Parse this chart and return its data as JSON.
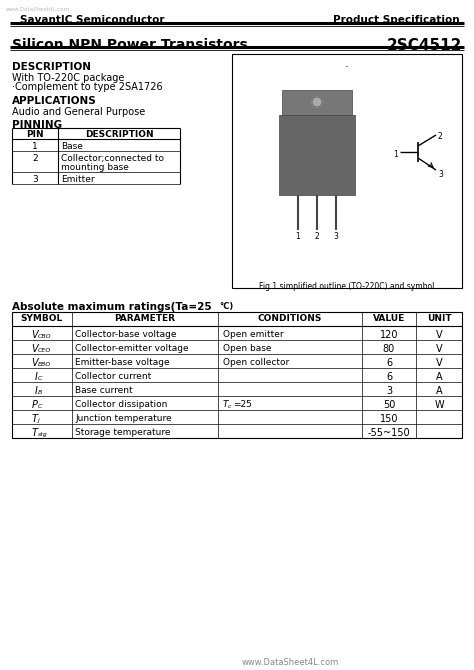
{
  "bg_color": "#ffffff",
  "header_left": "SavantIC Semiconductor",
  "header_right": "Product Specification",
  "watermark_text": "www.DataSheet4L.com",
  "watermark_color": "#bbbbbb",
  "title_left": "Silicon NPN Power Transistors",
  "title_right": "2SC4512",
  "description_title": "DESCRIPTION",
  "description_lines": [
    "With TO-220C package",
    "·Complement to type 2SA1726"
  ],
  "applications_title": "APPLICATIONS",
  "applications_lines": [
    "Audio and General Purpose"
  ],
  "pinning_title": "PINNING",
  "pinning_headers": [
    "PIN",
    "DESCRIPTION"
  ],
  "pinning_rows": [
    [
      "1",
      "Base"
    ],
    [
      "2",
      "Collector;connected to\nmounting base"
    ],
    [
      "3",
      "Emitter"
    ]
  ],
  "fig_caption": "Fig.1 simplified outline (TO-220C) and symbol",
  "table_title": "Absolute maximum ratings(Ta=25",
  "table_title_super": "°C)",
  "table_headers": [
    "SYMBOL",
    "PARAMETER",
    "CONDITIONS",
    "VALUE",
    "UNIT"
  ],
  "row_symbols": [
    [
      "V",
      "CBO"
    ],
    [
      "V",
      "CEO"
    ],
    [
      "V",
      "EBO"
    ],
    [
      "I",
      "C"
    ],
    [
      "I",
      "B"
    ],
    [
      "P",
      "C"
    ],
    [
      "T",
      "j"
    ],
    [
      "T",
      "stg"
    ]
  ],
  "params": [
    "Collector-base voltage",
    "Collector-emitter voltage",
    "Emitter-base voltage",
    "Collector current",
    "Base current",
    "Collector dissipation",
    "Junction temperature",
    "Storage temperature"
  ],
  "conditions": [
    "Open emitter",
    "Open base",
    "Open collector",
    "",
    "",
    "Tc=25",
    "",
    ""
  ],
  "values": [
    "120",
    "80",
    "6",
    "6",
    "3",
    "50",
    "150",
    "-55~150"
  ],
  "units": [
    "V",
    "V",
    "V",
    "A",
    "A",
    "W",
    "",
    ""
  ],
  "footer": "www.DataSheet4L.com",
  "footer_color": "#888888"
}
